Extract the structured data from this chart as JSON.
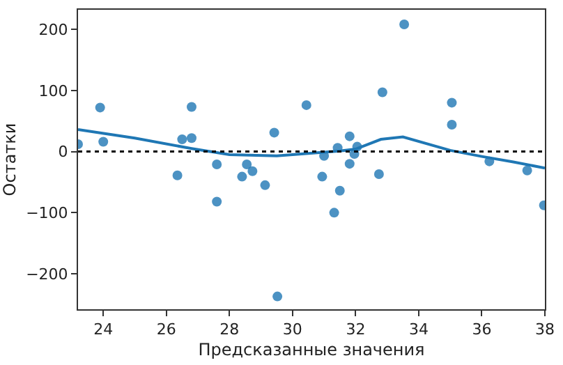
{
  "chart_data": {
    "type": "scatter",
    "xlabel": "Предсказанные значения",
    "ylabel": "Остатки",
    "xlim": [
      23.2,
      38
    ],
    "xticks": [
      24,
      26,
      28,
      30,
      32,
      34,
      36,
      38
    ],
    "ylim": [
      -258,
      232
    ],
    "yticks": [
      -200,
      -100,
      0,
      100,
      200
    ],
    "grid": false,
    "legend": false,
    "marker": "circle",
    "series": [
      {
        "color": "#1f77b4",
        "x": [
          23.2,
          23.9,
          24.0,
          26.35,
          26.5,
          26.8,
          26.8,
          27.6,
          27.6,
          28.55,
          28.4,
          28.73,
          29.13,
          29.42,
          29.52,
          30.44,
          30.94,
          31.0,
          31.32,
          31.43,
          31.5,
          31.81,
          31.81,
          31.96,
          32.05,
          32.74,
          32.85,
          33.54,
          35.05,
          35.05,
          36.24,
          37.44,
          37.97
        ],
        "values": [
          12,
          72,
          16,
          -39,
          20,
          73,
          22,
          -21,
          -82,
          -21,
          -41,
          -32,
          -55,
          31,
          -237,
          76,
          -41,
          -7,
          -100,
          6,
          -64,
          25,
          -20,
          -4,
          8,
          -37,
          97,
          208,
          80,
          44,
          -16,
          -31,
          -88
        ]
      },
      {
        "type": "line",
        "color": "#1f77b4",
        "line_style": "solid",
        "marker": "none",
        "x": [
          23.2,
          25,
          26.8,
          28,
          29.5,
          30.5,
          31.5,
          32,
          32.8,
          33.5,
          35,
          36,
          37,
          38
        ],
        "values": [
          36,
          22,
          5,
          -5,
          -7,
          -3,
          1,
          4,
          20,
          24,
          2,
          -8,
          -17,
          -27
        ]
      }
    ],
    "ref_lines": [
      {
        "axis": "y",
        "value": 0,
        "color": "#000000",
        "line_style": "dotted"
      }
    ]
  }
}
